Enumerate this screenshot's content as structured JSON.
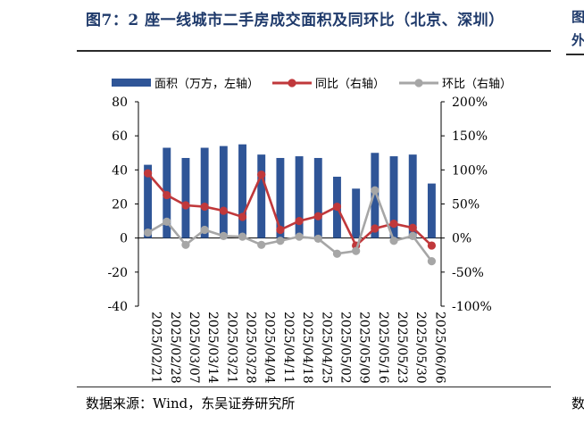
{
  "figure": {
    "title": "图7：2 座一线城市二手房成交面积及同环比（北京、深圳）",
    "source": "数据来源：Wind，东吴证券研究所",
    "edge_glyphs": [
      "图",
      "外",
      "数"
    ]
  },
  "chart_data": {
    "type": "bar",
    "categories": [
      "2025/02/21",
      "2025/02/28",
      "2025/03/07",
      "2025/03/14",
      "2025/03/21",
      "2025/03/28",
      "2025/04/04",
      "2025/04/11",
      "2025/04/18",
      "2025/04/25",
      "2025/05/02",
      "2025/05/09",
      "2025/05/16",
      "2025/05/23",
      "2025/05/30",
      "2025/06/06"
    ],
    "series": [
      {
        "name": "面积（万方，左轴）",
        "type": "bar",
        "axis": "left",
        "color": "#2f5597",
        "values": [
          43,
          53,
          47,
          53,
          54,
          55,
          49,
          47,
          48,
          47,
          36,
          29,
          50,
          48,
          49,
          32
        ]
      },
      {
        "name": "同比（右轴）",
        "type": "line",
        "axis": "right",
        "color": "#c0383b",
        "values": [
          95,
          63,
          48,
          46,
          40,
          31,
          93,
          12,
          25,
          32,
          46,
          -11,
          14,
          21,
          15,
          -11
        ]
      },
      {
        "name": "环比（右轴）",
        "type": "line",
        "axis": "right",
        "color": "#a6a6a6",
        "values": [
          8,
          24,
          -10,
          12,
          3,
          2,
          -10,
          -4,
          2,
          -1,
          -23,
          -19,
          70,
          -4,
          3,
          -34
        ]
      }
    ],
    "y_left": {
      "min": -40,
      "max": 80,
      "ticks": [
        "-40",
        "-20",
        "0",
        "20",
        "40",
        "60",
        "80"
      ]
    },
    "y_right": {
      "min": -100,
      "max": 200,
      "ticks": [
        "-100%",
        "-50%",
        "0%",
        "50%",
        "100%",
        "150%",
        "200%"
      ]
    },
    "grid": false,
    "legend_position": "top"
  }
}
